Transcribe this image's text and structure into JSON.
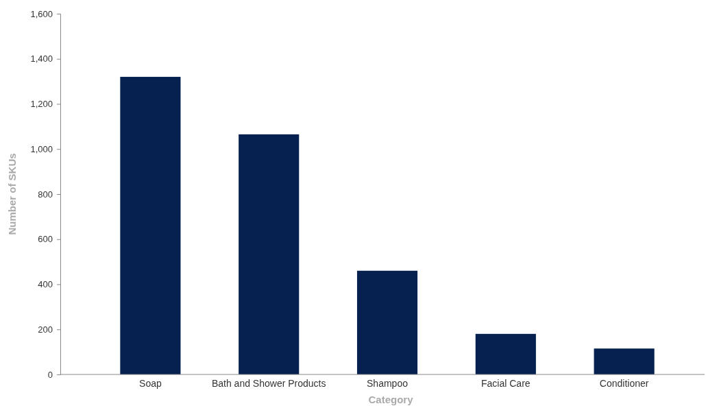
{
  "chart_data": {
    "type": "bar",
    "xlabel": "Category",
    "ylabel": "Number of SKUs",
    "categories": [
      "Soap",
      "Bath and Shower Products",
      "Shampoo",
      "Facial Care",
      "Conditioner"
    ],
    "values": [
      1320,
      1065,
      460,
      180,
      115
    ],
    "color": "#062150",
    "ylim": [
      0,
      1600
    ],
    "yticks": [
      0,
      {
        "value": 200,
        "label": "200"
      },
      {
        "value": 400,
        "label": "400"
      },
      {
        "value": 600,
        "label": "600"
      },
      {
        "value": 800,
        "label": "800"
      },
      {
        "value": 1000,
        "label": "1,000"
      },
      {
        "value": 1200,
        "label": "1,200"
      },
      {
        "value": 1400,
        "label": "1,400"
      },
      {
        "value": 1600,
        "label": "1,600"
      }
    ],
    "grid": false
  }
}
